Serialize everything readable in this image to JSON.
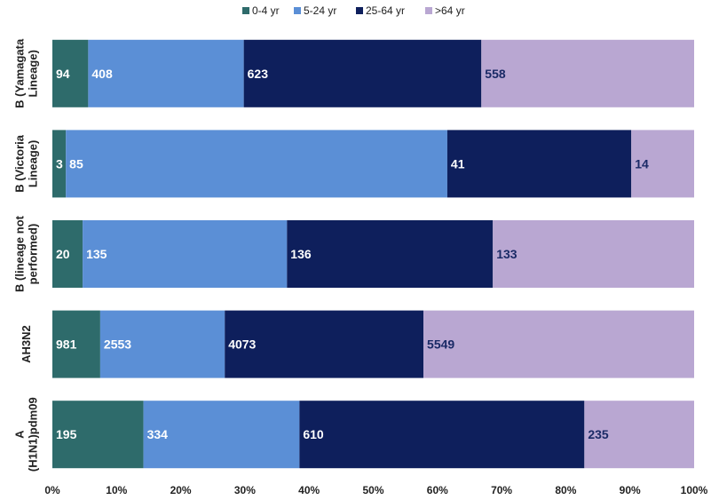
{
  "chart_data": {
    "type": "bar",
    "orientation": "horizontal",
    "stacked": "percent",
    "title": "",
    "xlabel": "",
    "ylabel": "",
    "xlim": [
      0,
      100
    ],
    "x_ticks": [
      "0%",
      "10%",
      "20%",
      "30%",
      "40%",
      "50%",
      "60%",
      "70%",
      "80%",
      "90%",
      "100%"
    ],
    "grid": false,
    "legend_position": "top",
    "categories": [
      "B (Yamagata Lineage)",
      "B (Victoria Lineage)",
      "B (lineage not performed)",
      "AH3N2",
      "A (H1N1)pdm09"
    ],
    "series": [
      {
        "name": "0-4 yr",
        "color": "#2e6b6b",
        "label_color": "#ffffff",
        "values": [
          94,
          3,
          20,
          981,
          195
        ]
      },
      {
        "name": "5-24 yr",
        "color": "#5b8fd6",
        "label_color": "#ffffff",
        "values": [
          408,
          85,
          135,
          2553,
          334
        ]
      },
      {
        "name": "25-64 yr",
        "color": "#0e1f5c",
        "label_color": "#ffffff",
        "values": [
          623,
          41,
          136,
          4073,
          610
        ]
      },
      {
        "name": ">64 yr",
        "color": "#b9a7d2",
        "label_color": "#1a2a66",
        "values": [
          558,
          14,
          133,
          5549,
          235
        ]
      }
    ]
  }
}
